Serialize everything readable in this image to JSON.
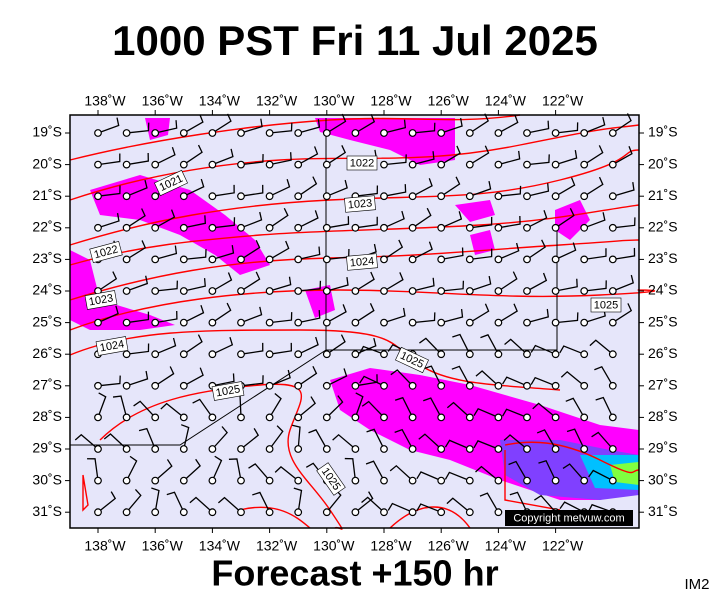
{
  "header": {
    "title": "1000 PST Fri 11 Jul 2025"
  },
  "map": {
    "lon_labels": [
      "138˚W",
      "136˚W",
      "134˚W",
      "132˚W",
      "130˚W",
      "128˚W",
      "126˚W",
      "124˚W",
      "122˚W"
    ],
    "lat_labels": [
      "19˚S",
      "20˚S",
      "21˚S",
      "22˚S",
      "23˚S",
      "24˚S",
      "25˚S",
      "26˚S",
      "27˚S",
      "28˚S",
      "29˚S",
      "30˚S",
      "31˚S"
    ],
    "isobar_labels": [
      "1021",
      "1022",
      "1022",
      "1023",
      "1024",
      "1023",
      "1024",
      "1025",
      "1025",
      "1025",
      "1025"
    ],
    "copyright": "Copyright metvuw.com"
  },
  "footer": {
    "caption": "Forecast +150 hr",
    "code": "IM2"
  }
}
